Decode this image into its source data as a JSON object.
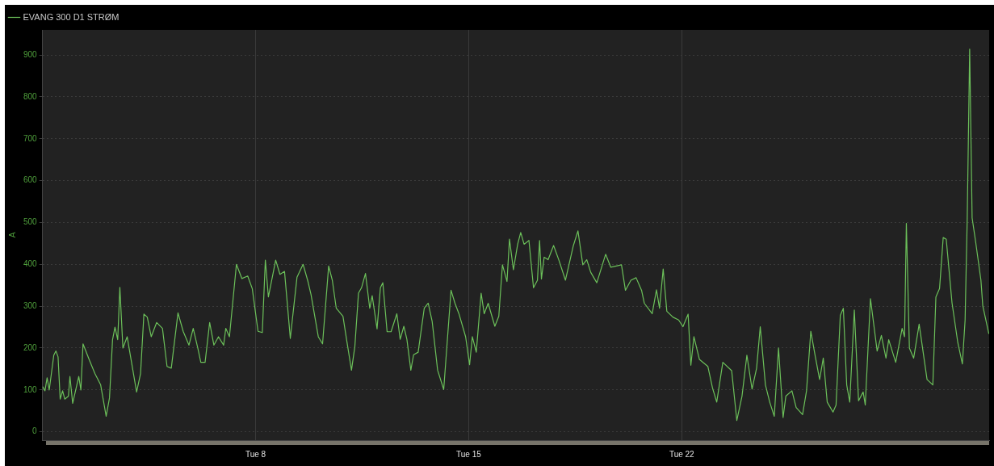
{
  "chart_data": {
    "type": "line",
    "ylabel": "A",
    "legend": "top left",
    "grid": true,
    "marker": "none",
    "line_style": "solid",
    "xlim": [
      "--03-01T00:00",
      "--04-01T02:24"
    ],
    "xticks": [
      {
        "value": "--03-08",
        "label": "Tue 8"
      },
      {
        "value": "--03-15",
        "label": "Tue 15"
      },
      {
        "value": "--03-22",
        "label": "Tue 22"
      }
    ],
    "ylim": [
      -20,
      960
    ],
    "yticks": [
      0,
      100,
      200,
      300,
      400,
      500,
      600,
      700,
      800,
      900
    ],
    "series": [
      {
        "name": "EVANG 300 D1 STRØM",
        "color": "#6cc05a",
        "x": [
          "--03-01T00:00",
          "--03-01T01:55",
          "--03-01T03:36",
          "--03-01T05:17",
          "--03-01T08:53",
          "--03-01T10:34",
          "--03-01T12:14",
          "--03-01T13:55",
          "--03-01T15:50",
          "--03-01T17:31",
          "--03-01T20:24",
          "--03-01T21:36",
          "--03-01T23:46",
          "--03-02T04:34",
          "--03-02T06:14",
          "--03-02T07:55",
          "--03-02T12:43",
          "--03-02T17:17",
          "--03-02T21:50",
          "--03-03T02:10",
          "--03-03T04:48",
          "--03-03T07:12",
          "--03-03T09:07",
          "--03-03T11:17",
          "--03-03T12:58",
          "--03-03T15:22",
          "--03-03T18:43",
          "--03-03T23:17",
          "--03-04T02:10",
          "--03-04T05:17",
          "--03-04T07:55",
          "--03-04T10:34",
          "--03-04T13:41",
          "--03-04T18:00",
          "--03-04T22:34",
          "--03-05T02:10",
          "--03-05T05:31",
          "--03-05T10:48",
          "--03-05T14:53",
          "--03-05T19:26",
          "--03-05T22:48",
          "--03-06T02:24",
          "--03-06T04:48",
          "--03-06T08:10",
          "--03-06T11:46",
          "--03-06T15:07",
          "--03-06T18:43",
          "--03-06T22:48",
          "--03-07T00:29",
          "--03-07T03:22",
          "--03-07T08:53",
          "--03-07T13:12",
          "--03-07T17:46",
          "--03-07T21:22",
          "--03-08T01:55",
          "--03-08T05:17",
          "--03-08T07:41",
          "--03-08T10:05",
          "--03-08T15:50",
          "--03-08T19:12",
          "--03-08T22:48",
          "--03-09T03:22",
          "--03-09T08:38",
          "--03-09T13:26",
          "--03-09T17:17",
          "--03-09T19:41",
          "--03-10T01:26",
          "--03-10T04:48",
          "--03-10T09:36",
          "--03-10T12:29",
          "--03-10T15:36",
          "--03-10T20:53",
          "--03-11T00:00",
          "--03-11T03:36",
          "--03-11T06:14",
          "--03-11T09:07",
          "--03-11T11:31",
          "--03-11T14:38",
          "--03-11T18:00",
          "--03-11T19:55",
          "--03-11T23:46",
          "--03-12T02:24",
          "--03-12T04:19",
          "--03-12T07:41",
          "--03-12T10:48",
          "--03-12T15:22",
          "--03-12T18:00",
          "--03-12T20:53",
          "--03-12T23:17",
          "--03-13T02:24",
          "--03-13T04:34",
          "--03-13T08:10",
          "--03-13T12:58",
          "--03-13T16:05",
          "--03-13T19:12",
          "--03-13T23:31",
          "--03-14T04:19",
          "--03-14T10:05",
          "--03-14T13:12",
          "--03-14T16:19",
          "--03-14T21:36",
          "--03-15T00:43",
          "--03-15T02:53",
          "--03-15T06:00",
          "--03-15T09:50",
          "--03-15T12:14",
          "--03-15T15:22",
          "--03-15T20:38",
          "--03-15T23:46",
          "--03-16T02:38",
          "--03-16T06:14",
          "--03-16T08:10",
          "--03-16T11:17",
          "--03-16T14:38",
          "--03-16T17:02",
          "--03-16T19:41",
          "--03-16T23:31",
          "--03-17T03:07",
          "--03-17T06:14",
          "--03-17T07:55",
          "--03-17T09:22",
          "--03-17T11:31",
          "--03-17T14:38",
          "--03-17T18:58",
          "--03-17T23:02",
          "--03-18T04:19",
          "--03-18T10:34",
          "--03-18T14:10",
          "--03-18T18:00",
          "--03-18T21:07",
          "--03-19T00:14",
          "--03-19T05:02",
          "--03-19T12:00",
          "--03-19T16:05",
          "--03-19T20:24",
          "--03-20T00:29",
          "--03-20T03:36",
          "--03-20T07:55",
          "--03-20T12:00",
          "--03-20T16:19",
          "--03-20T18:29",
          "--03-21T00:43",
          "--03-21T04:05",
          "--03-21T06:29",
          "--03-21T09:22",
          "--03-21T12:14",
          "--03-21T17:02",
          "--03-21T21:36",
          "--03-22T00:58",
          "--03-22T05:02",
          "--03-22T07:12",
          "--03-22T09:36",
          "--03-22T13:55",
          "--03-22T20:38",
          "--03-23T00:14",
          "--03-23T03:36",
          "--03-23T08:24",
          "--03-23T15:22",
          "--03-23T19:26",
          "--03-23T23:31",
          "--03-24T03:22",
          "--03-24T07:26",
          "--03-24T11:02",
          "--03-24T13:55",
          "--03-24T18:00",
          "--03-24T21:22",
          "--03-25T00:58",
          "--03-25T04:19",
          "--03-25T07:55",
          "--03-25T10:05",
          "--03-25T14:53",
          "--03-25T18:14",
          "--03-25T23:17",
          "--03-26T02:24",
          "--03-26T05:46",
          "--03-26T09:22",
          "--03-26T12:43",
          "--03-26T15:36",
          "--03-26T18:43",
          "--03-26T23:17",
          "--03-27T01:41",
          "--03-27T05:02",
          "--03-27T07:26",
          "--03-27T10:05",
          "--03-27T12:29",
          "--03-27T16:05",
          "--03-27T19:26",
          "--03-27T23:02",
          "--03-28T00:43",
          "--03-28T04:48",
          "--03-28T10:05",
          "--03-28T13:26",
          "--03-28T17:02",
          "--03-28T19:12",
          "--03-29T00:43",
          "--03-29T05:46",
          "--03-29T07:41",
          "--03-29T09:07",
          "--03-29T11:31",
          "--03-29T14:53",
          "--03-29T19:12",
          "--03-30T01:26",
          "--03-30T06:00",
          "--03-30T08:24",
          "--03-30T11:17",
          "--03-30T14:10",
          "--03-30T16:34",
          "--03-30T21:07",
          "--03-31T01:41",
          "--03-31T05:17",
          "--03-31T07:26",
          "--03-31T09:07",
          "--03-31T11:02",
          "--03-31T12:58",
          "--03-31T15:36",
          "--03-31T19:55",
          "--03-31T21:22",
          "--04-01T02:10"
        ],
        "values": [
          108,
          98,
          129,
          100,
          183,
          193,
          179,
          78,
          98,
          78,
          85,
          132,
          68,
          132,
          100,
          210,
          173,
          139,
          112,
          37,
          81,
          220,
          250,
          220,
          345,
          200,
          227,
          146,
          95,
          139,
          281,
          274,
          227,
          261,
          247,
          156,
          152,
          284,
          240,
          207,
          247,
          200,
          166,
          166,
          261,
          207,
          227,
          207,
          247,
          227,
          400,
          366,
          372,
          342,
          240,
          237,
          410,
          322,
          410,
          376,
          383,
          223,
          369,
          400,
          359,
          328,
          227,
          210,
          396,
          362,
          295,
          276,
          215,
          147,
          203,
          331,
          344,
          378,
          295,
          325,
          246,
          344,
          356,
          239,
          239,
          282,
          221,
          252,
          221,
          147,
          184,
          190,
          295,
          307,
          264,
          147,
          101,
          338,
          307,
          282,
          227,
          160,
          227,
          190,
          331,
          282,
          307,
          252,
          276,
          399,
          359,
          460,
          387,
          448,
          476,
          448,
          457,
          344,
          362,
          457,
          365,
          417,
          411,
          445,
          411,
          362,
          445,
          480,
          399,
          411,
          381,
          356,
          424,
          393,
          396,
          399,
          338,
          362,
          368,
          338,
          307,
          282,
          339,
          295,
          389,
          288,
          274,
          267,
          251,
          281,
          159,
          227,
          173,
          156,
          105,
          71,
          166,
          146,
          27,
          85,
          183,
          102,
          152,
          251,
          112,
          71,
          37,
          200,
          34,
          85,
          98,
          58,
          41,
          98,
          240,
          179,
          125,
          176,
          71,
          47,
          64,
          278,
          295,
          112,
          71,
          291,
          74,
          95,
          64,
          318,
          193,
          230,
          176,
          220,
          166,
          247,
          227,
          498,
          200,
          176,
          257,
          125,
          112,
          322,
          342,
          464,
          460,
          308,
          213,
          162,
          267,
          511,
          914,
          511,
          457,
          362,
          301,
          234
        ]
      }
    ]
  }
}
